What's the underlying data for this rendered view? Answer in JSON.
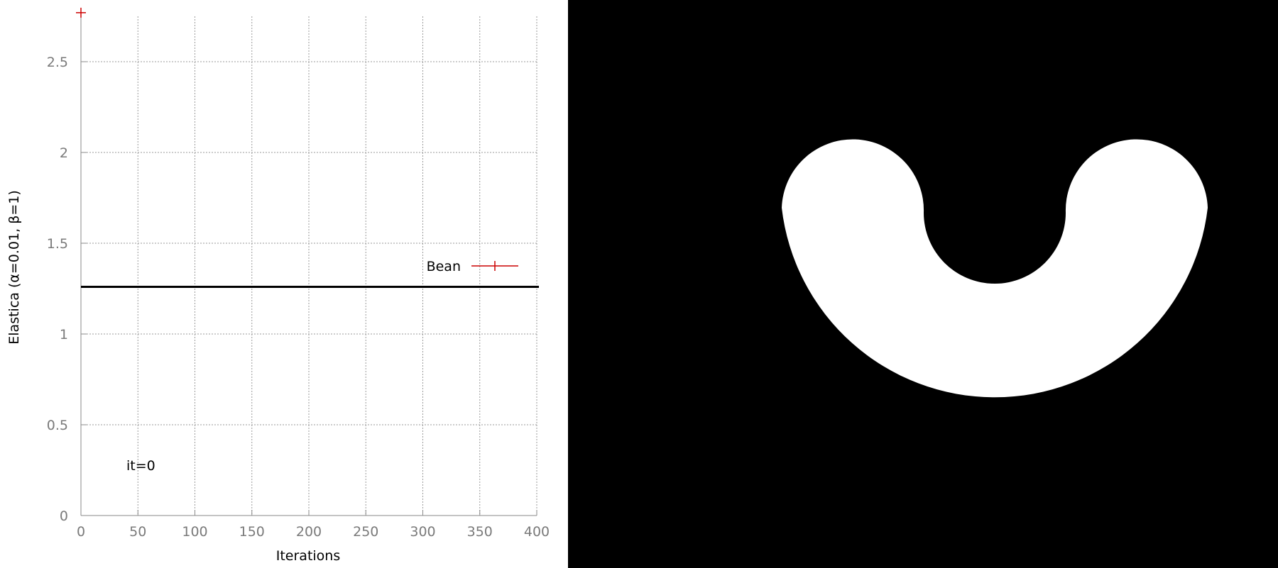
{
  "chart_data": {
    "type": "line",
    "xlabel": "Iterations",
    "ylabel": "Elastica (α=0.01, β=1)",
    "xlim": [
      0,
      400
    ],
    "ylim": [
      0,
      2.75
    ],
    "x_ticks": [
      0,
      50,
      100,
      150,
      200,
      250,
      300,
      350,
      400
    ],
    "x_tick_labels": [
      "0",
      "50",
      "100",
      "150",
      "200",
      "250",
      "300",
      "350",
      "400"
    ],
    "y_ticks": [
      0,
      0.5,
      1,
      1.5,
      2,
      2.5
    ],
    "y_tick_labels": [
      "0",
      "0.5",
      "1",
      "1.5",
      "2",
      "2.5"
    ],
    "grid": true,
    "series": [
      {
        "name": "Bean",
        "color": "#cc0000",
        "marker": "+",
        "x": [
          0
        ],
        "y": [
          2.77
        ]
      }
    ],
    "reference_line": {
      "y": 1.26,
      "color": "#000000"
    },
    "legend": {
      "position": "right",
      "entries": [
        "Bean"
      ]
    },
    "annotation": "it=0"
  },
  "image_panel": {
    "background": "#000000",
    "shape_color": "#ffffff"
  }
}
